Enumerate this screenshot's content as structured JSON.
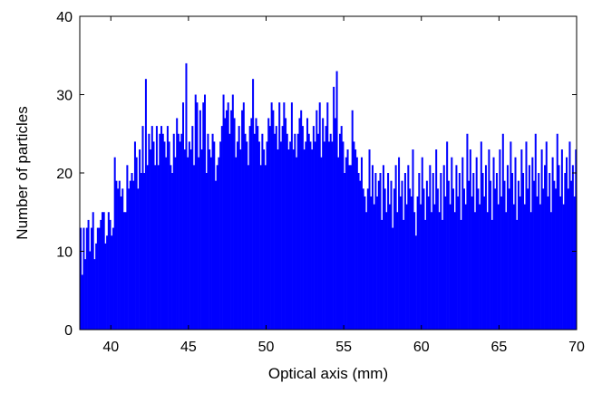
{
  "chart_data": {
    "type": "bar",
    "xlabel": "Optical axis (mm)",
    "ylabel": "Number of particles",
    "xlim": [
      38,
      70
    ],
    "ylim": [
      0,
      40
    ],
    "xticks": [
      40,
      45,
      50,
      55,
      60,
      65,
      70
    ],
    "yticks": [
      0,
      10,
      20,
      30,
      40
    ],
    "grid": false,
    "colors": {
      "bars": "#0000ff",
      "axes": "#000000",
      "background": "#ffffff"
    },
    "series": [
      {
        "x_start": 38.0,
        "bin_width": 0.1,
        "values": [
          13,
          7,
          13,
          9,
          13,
          14,
          10,
          13,
          15,
          9,
          11,
          13,
          13,
          14,
          15,
          15,
          11,
          12,
          15,
          14,
          12,
          13,
          22,
          19,
          18,
          19,
          17,
          18,
          15,
          15,
          21,
          18,
          19,
          20,
          19,
          24,
          22,
          18,
          23,
          20,
          26,
          20,
          32,
          21,
          25,
          23,
          26,
          24,
          21,
          26,
          21,
          25,
          26,
          25,
          24,
          22,
          26,
          24,
          21,
          20,
          25,
          22,
          27,
          25,
          24,
          25,
          29,
          23,
          34,
          22,
          24,
          23,
          26,
          21,
          30,
          29,
          22,
          28,
          23,
          29,
          30,
          20,
          25,
          23,
          22,
          25,
          24,
          19,
          21,
          22,
          24,
          26,
          30,
          27,
          28,
          29,
          25,
          28,
          30,
          27,
          22,
          24,
          26,
          23,
          28,
          29,
          25,
          24,
          21,
          26,
          27,
          32,
          25,
          27,
          26,
          24,
          21,
          25,
          23,
          21,
          24,
          27,
          26,
          29,
          28,
          25,
          26,
          23,
          29,
          24,
          26,
          29,
          27,
          25,
          23,
          24,
          29,
          23,
          25,
          22,
          25,
          27,
          28,
          26,
          23,
          24,
          27,
          25,
          24,
          23,
          26,
          24,
          28,
          25,
          29,
          22,
          27,
          24,
          26,
          29,
          24,
          25,
          24,
          31,
          27,
          33,
          22,
          25,
          26,
          24,
          20,
          22,
          23,
          21,
          21,
          28,
          24,
          23,
          22,
          20,
          19,
          22,
          18,
          17,
          15,
          18,
          23,
          17,
          21,
          16,
          20,
          17,
          19,
          20,
          14,
          21,
          18,
          15,
          20,
          16,
          19,
          13,
          18,
          21,
          15,
          22,
          17,
          19,
          14,
          20,
          16,
          21,
          18,
          17,
          23,
          15,
          12,
          17,
          20,
          16,
          22,
          18,
          14,
          19,
          17,
          21,
          15,
          20,
          16,
          23,
          18,
          15,
          20,
          14,
          21,
          17,
          24,
          19,
          16,
          22,
          18,
          15,
          21,
          17,
          20,
          14,
          22,
          18,
          16,
          25,
          19,
          23,
          17,
          20,
          15,
          22,
          18,
          16,
          24,
          20,
          17,
          21,
          15,
          23,
          19,
          14,
          22,
          18,
          20,
          16,
          23,
          17,
          25,
          19,
          15,
          21,
          18,
          24,
          20,
          16,
          22,
          14,
          19,
          17,
          23,
          20,
          16,
          24,
          18,
          21,
          15,
          22,
          19,
          25,
          17,
          20,
          16,
          23,
          18,
          21,
          24,
          17,
          20,
          15,
          22,
          19,
          18,
          25,
          21,
          17,
          23,
          16,
          20,
          22,
          18,
          24,
          19,
          21,
          17,
          23,
          20,
          25,
          18,
          22,
          16,
          24,
          21,
          19,
          23,
          17,
          22,
          20,
          25,
          18,
          24,
          21,
          26,
          19,
          23,
          22,
          20,
          24,
          18,
          25,
          21,
          23,
          26,
          20,
          22,
          24,
          19,
          25,
          27,
          21,
          23,
          26,
          22,
          24,
          28,
          21,
          25,
          23,
          27,
          22,
          26,
          24,
          29,
          23,
          27,
          25,
          31,
          24,
          28,
          26,
          30,
          27,
          25,
          33,
          36,
          29,
          25,
          28,
          27,
          24,
          30,
          26,
          28,
          25,
          31,
          23,
          27,
          29,
          25,
          26,
          30,
          24,
          28,
          22,
          26,
          24,
          29,
          23,
          27,
          25,
          21,
          26,
          24,
          28,
          22,
          25,
          23,
          29,
          24,
          21,
          26,
          23,
          25,
          27,
          22,
          28,
          24,
          20,
          26,
          23,
          29,
          25,
          21,
          27,
          24,
          22,
          26,
          23,
          28,
          21,
          25,
          24,
          27,
          22,
          26,
          20,
          25,
          23,
          28,
          24,
          21,
          26,
          22,
          27,
          24,
          20,
          25,
          23,
          29,
          22,
          26,
          24,
          21,
          27,
          23,
          25,
          20,
          24,
          26,
          22,
          28,
          23,
          21,
          25,
          24,
          27,
          22,
          20,
          26,
          23,
          25,
          21,
          24,
          27,
          22,
          26,
          23,
          25,
          20,
          24,
          22,
          26,
          23,
          21,
          25,
          20,
          23,
          24,
          22,
          37,
          21,
          23,
          20,
          22,
          24,
          21,
          19,
          23,
          20,
          22,
          18,
          21,
          24,
          20,
          22,
          19,
          23,
          18,
          21,
          20,
          24,
          19,
          22,
          18,
          21,
          20,
          23,
          19,
          17,
          22,
          20,
          18,
          21,
          19,
          16,
          20,
          18,
          22,
          17,
          19,
          21,
          16,
          20,
          18,
          15,
          19,
          17,
          21,
          16,
          18,
          15,
          20,
          17,
          14,
          19,
          16,
          18,
          15,
          17,
          13,
          16,
          15,
          14,
          12,
          15,
          13,
          11,
          14,
          12,
          13,
          10,
          12,
          9,
          11,
          13,
          8,
          10,
          9
        ]
      }
    ]
  }
}
